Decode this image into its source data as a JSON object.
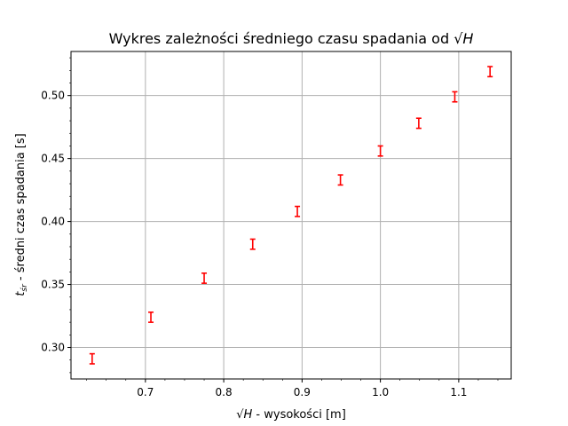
{
  "chart_data": {
    "type": "scatter",
    "title": "Wykres zależności średniego czasu spadania od ",
    "title_math": "√H",
    "xlabel_math": "√H",
    "xlabel": " - wysokości [m]",
    "ylabel_math_base": "t",
    "ylabel_math_sub": "śr",
    "ylabel": " - średni czas spadania [s]",
    "xlim": [
      0.605,
      1.167
    ],
    "ylim": [
      0.275,
      0.535
    ],
    "xticks": [
      0.7,
      0.8,
      0.9,
      1.0,
      1.1
    ],
    "xtick_labels": [
      "0.7",
      "0.8",
      "0.9",
      "1.0",
      "1.1"
    ],
    "yticks": [
      0.3,
      0.35,
      0.4,
      0.45,
      0.5
    ],
    "ytick_labels": [
      "0.30",
      "0.35",
      "0.40",
      "0.45",
      "0.50"
    ],
    "grid": true,
    "marker_color": "#ff0000",
    "points": [
      {
        "x": 0.632,
        "y": 0.291,
        "err": 0.004
      },
      {
        "x": 0.707,
        "y": 0.324,
        "err": 0.004
      },
      {
        "x": 0.775,
        "y": 0.355,
        "err": 0.004
      },
      {
        "x": 0.837,
        "y": 0.382,
        "err": 0.004
      },
      {
        "x": 0.894,
        "y": 0.408,
        "err": 0.004
      },
      {
        "x": 0.949,
        "y": 0.433,
        "err": 0.004
      },
      {
        "x": 1.0,
        "y": 0.456,
        "err": 0.004
      },
      {
        "x": 1.049,
        "y": 0.478,
        "err": 0.004
      },
      {
        "x": 1.095,
        "y": 0.499,
        "err": 0.004
      },
      {
        "x": 1.14,
        "y": 0.519,
        "err": 0.004
      }
    ]
  }
}
